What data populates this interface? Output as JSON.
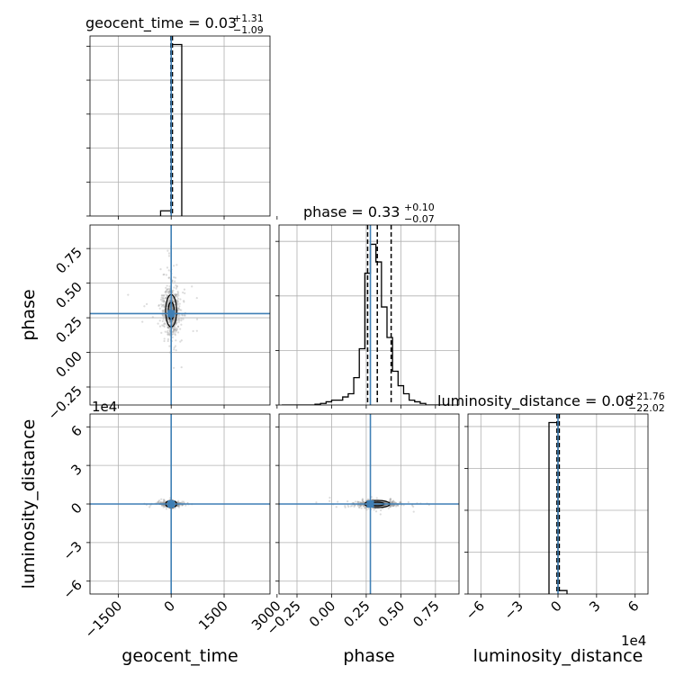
{
  "chart_data": {
    "type": "corner",
    "parameters": [
      "geocent_time",
      "phase",
      "luminosity_distance"
    ],
    "truths": {
      "geocent_time": 0,
      "phase": 0.28,
      "luminosity_distance": 0
    },
    "truth_color": "#3f7fb5",
    "grid": true,
    "titles": [
      {
        "param": "geocent_time",
        "text": "geocent_time = 0.03",
        "plus": "+1.31",
        "minus": "−1.09"
      },
      {
        "param": "phase",
        "text": "phase = 0.33",
        "plus": "+0.10",
        "minus": "−0.07"
      },
      {
        "param": "luminosity_distance",
        "text": "luminosity_distance = 0.08",
        "plus": "+21.76",
        "minus": "−22.02"
      }
    ],
    "axes": {
      "geocent_time": {
        "range": [
          -2300,
          2800
        ],
        "ticks": [
          "−1500",
          "0",
          "1500",
          "3000"
        ],
        "tick_values": [
          -1500,
          0,
          1500,
          3000
        ]
      },
      "phase": {
        "range": [
          -0.38,
          0.92
        ],
        "ticks": [
          "−0.25",
          "0.00",
          "0.25",
          "0.50",
          "0.75"
        ],
        "tick_values": [
          -0.25,
          0,
          0.25,
          0.5,
          0.75
        ]
      },
      "luminosity_distance": {
        "range": [
          -7,
          7
        ],
        "ticks": [
          "−6",
          "−3",
          "0",
          "3",
          "6"
        ],
        "tick_values": [
          -6,
          -3,
          0,
          3,
          6
        ],
        "offset_text": "1e4"
      }
    },
    "hist_geocent_time": {
      "bin_edges": [
        -300,
        0,
        300
      ],
      "counts": [
        0.03,
        1.0
      ],
      "quantiles": [
        -10,
        0,
        35
      ],
      "ymax": 1.05
    },
    "hist_phase": {
      "bin_edges": [
        -0.36,
        -0.32,
        -0.28,
        -0.24,
        -0.2,
        -0.16,
        -0.12,
        -0.08,
        -0.04,
        0.0,
        0.04,
        0.08,
        0.12,
        0.16,
        0.2,
        0.24,
        0.28,
        0.32,
        0.36,
        0.4,
        0.44,
        0.48,
        0.52,
        0.56,
        0.6,
        0.64,
        0.68,
        0.72,
        0.76,
        0.8,
        0.84
      ],
      "counts": [
        0,
        0,
        0,
        0,
        0,
        0,
        0.005,
        0.01,
        0.02,
        0.03,
        0.03,
        0.05,
        0.07,
        0.17,
        0.35,
        0.82,
        1.0,
        0.89,
        0.61,
        0.42,
        0.21,
        0.12,
        0.07,
        0.03,
        0.02,
        0.01,
        0,
        0,
        0,
        0
      ],
      "quantiles": [
        0.26,
        0.33,
        0.43
      ],
      "ymax": 1.12
    },
    "hist_luminosity_distance": {
      "bin_edges": [
        -0.7,
        0.0,
        0.7
      ],
      "counts": [
        1.0,
        0.02
      ],
      "quantiles": [
        -0.08,
        0.0,
        0.1
      ],
      "ymax": 1.05
    },
    "scatter_phase_vs_geocent_time": {
      "x_center": 0,
      "y_center": 0.3,
      "x_spread": 120,
      "y_spread": 0.09
    },
    "scatter_ld_vs_geocent_time": {
      "x_center": 0,
      "y_center": 0,
      "x_spread": 120,
      "y_spread": 0.08
    },
    "scatter_ld_vs_phase": {
      "x_center": 0.33,
      "y_center": 0,
      "x_spread": 0.07,
      "y_spread": 0.12
    }
  }
}
